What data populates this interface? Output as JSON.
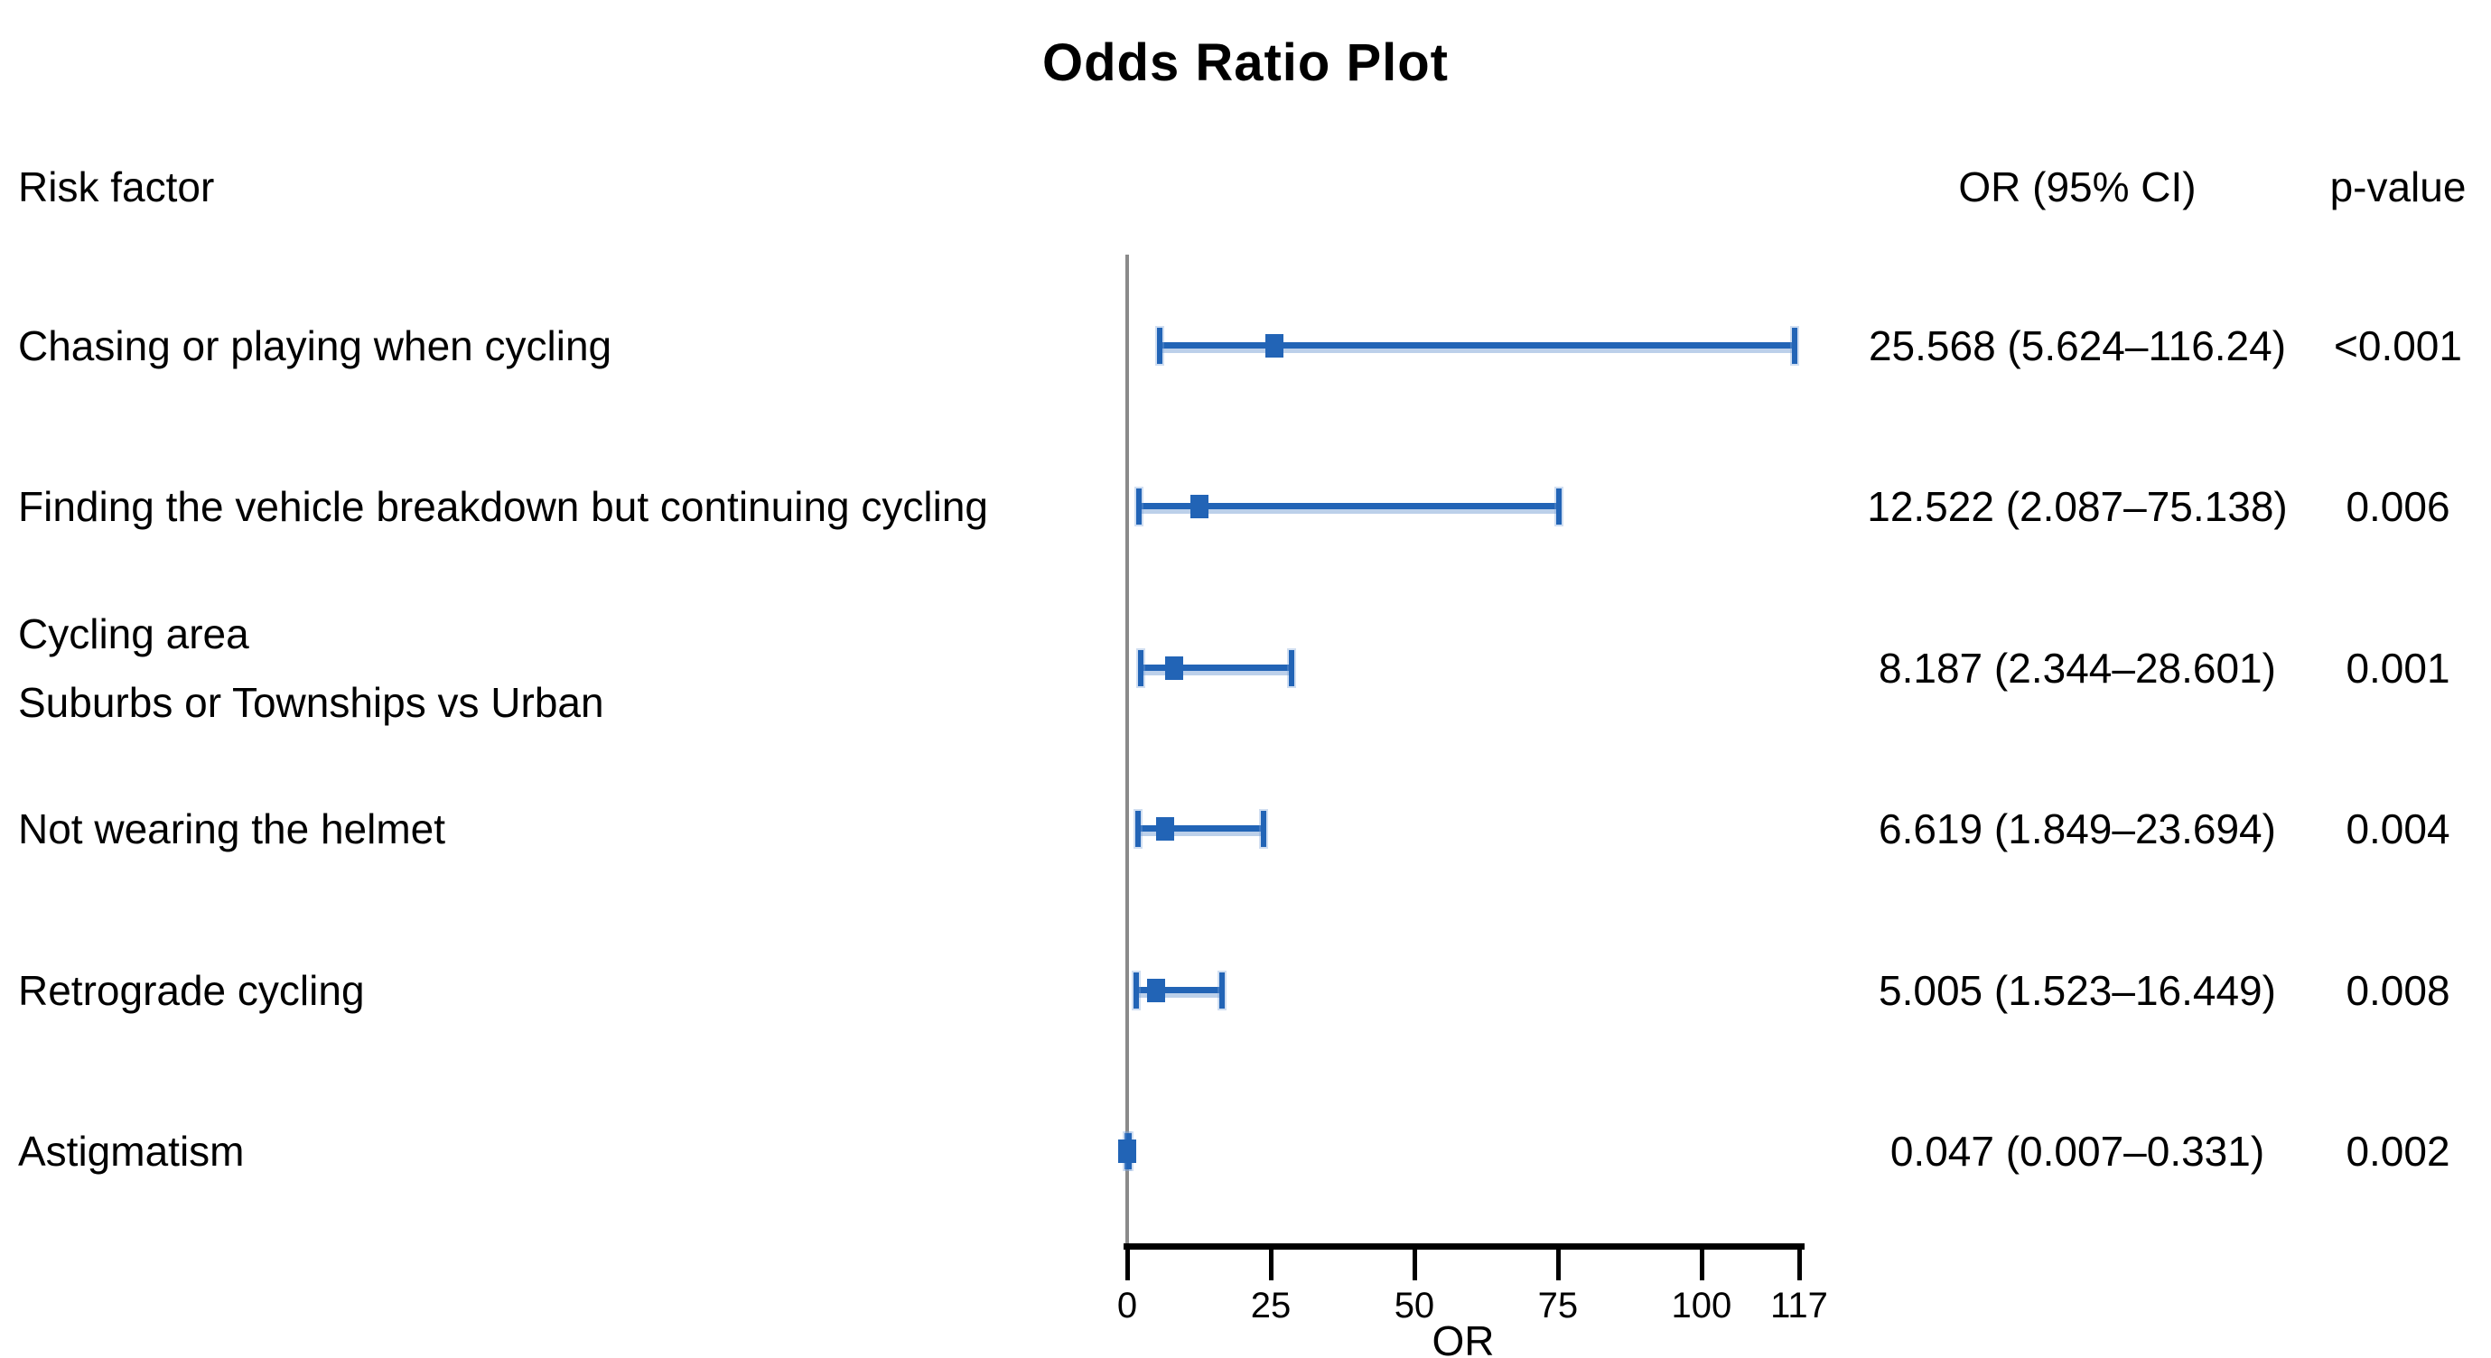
{
  "title": "Odds Ratio Plot",
  "columns": {
    "risk_factor": "Risk factor",
    "or_ci": "OR (95% CI)",
    "p_value": "p-value"
  },
  "colors": {
    "marker_blue": "#2264b6",
    "ci_halo_blue": "#bcd0ea",
    "axis_gray": "#8a8a8a",
    "axis_black": "#000000"
  },
  "chart_data": {
    "type": "forest",
    "title": "Odds Ratio Plot",
    "xlabel": "OR",
    "xlim": [
      0,
      117
    ],
    "x_ticks": [
      0,
      25,
      50,
      75,
      100,
      117
    ],
    "grid": false,
    "rows": [
      {
        "label_lines": [
          "Chasing or playing when cycling"
        ],
        "or": 25.568,
        "ci_low": 5.624,
        "ci_high": 116.24,
        "or_ci_text": "25.568 (5.624–116.24)",
        "p_value": "<0.001"
      },
      {
        "label_lines": [
          "Finding the vehicle breakdown but continuing cycling"
        ],
        "or": 12.522,
        "ci_low": 2.087,
        "ci_high": 75.138,
        "or_ci_text": "12.522 (2.087–75.138)",
        "p_value": "0.006"
      },
      {
        "label_lines": [
          "Cycling area",
          "Suburbs or Townships vs Urban"
        ],
        "or": 8.187,
        "ci_low": 2.344,
        "ci_high": 28.601,
        "or_ci_text": "8.187 (2.344–28.601)",
        "p_value": "0.001"
      },
      {
        "label_lines": [
          "Not wearing the helmet"
        ],
        "or": 6.619,
        "ci_low": 1.849,
        "ci_high": 23.694,
        "or_ci_text": "6.619 (1.849–23.694)",
        "p_value": "0.004"
      },
      {
        "label_lines": [
          "Retrograde cycling"
        ],
        "or": 5.005,
        "ci_low": 1.523,
        "ci_high": 16.449,
        "or_ci_text": "5.005 (1.523–16.449)",
        "p_value": "0.008"
      },
      {
        "label_lines": [
          "Astigmatism"
        ],
        "or": 0.047,
        "ci_low": 0.007,
        "ci_high": 0.331,
        "or_ci_text": "0.047 (0.007–0.331)",
        "p_value": "0.002"
      }
    ]
  }
}
